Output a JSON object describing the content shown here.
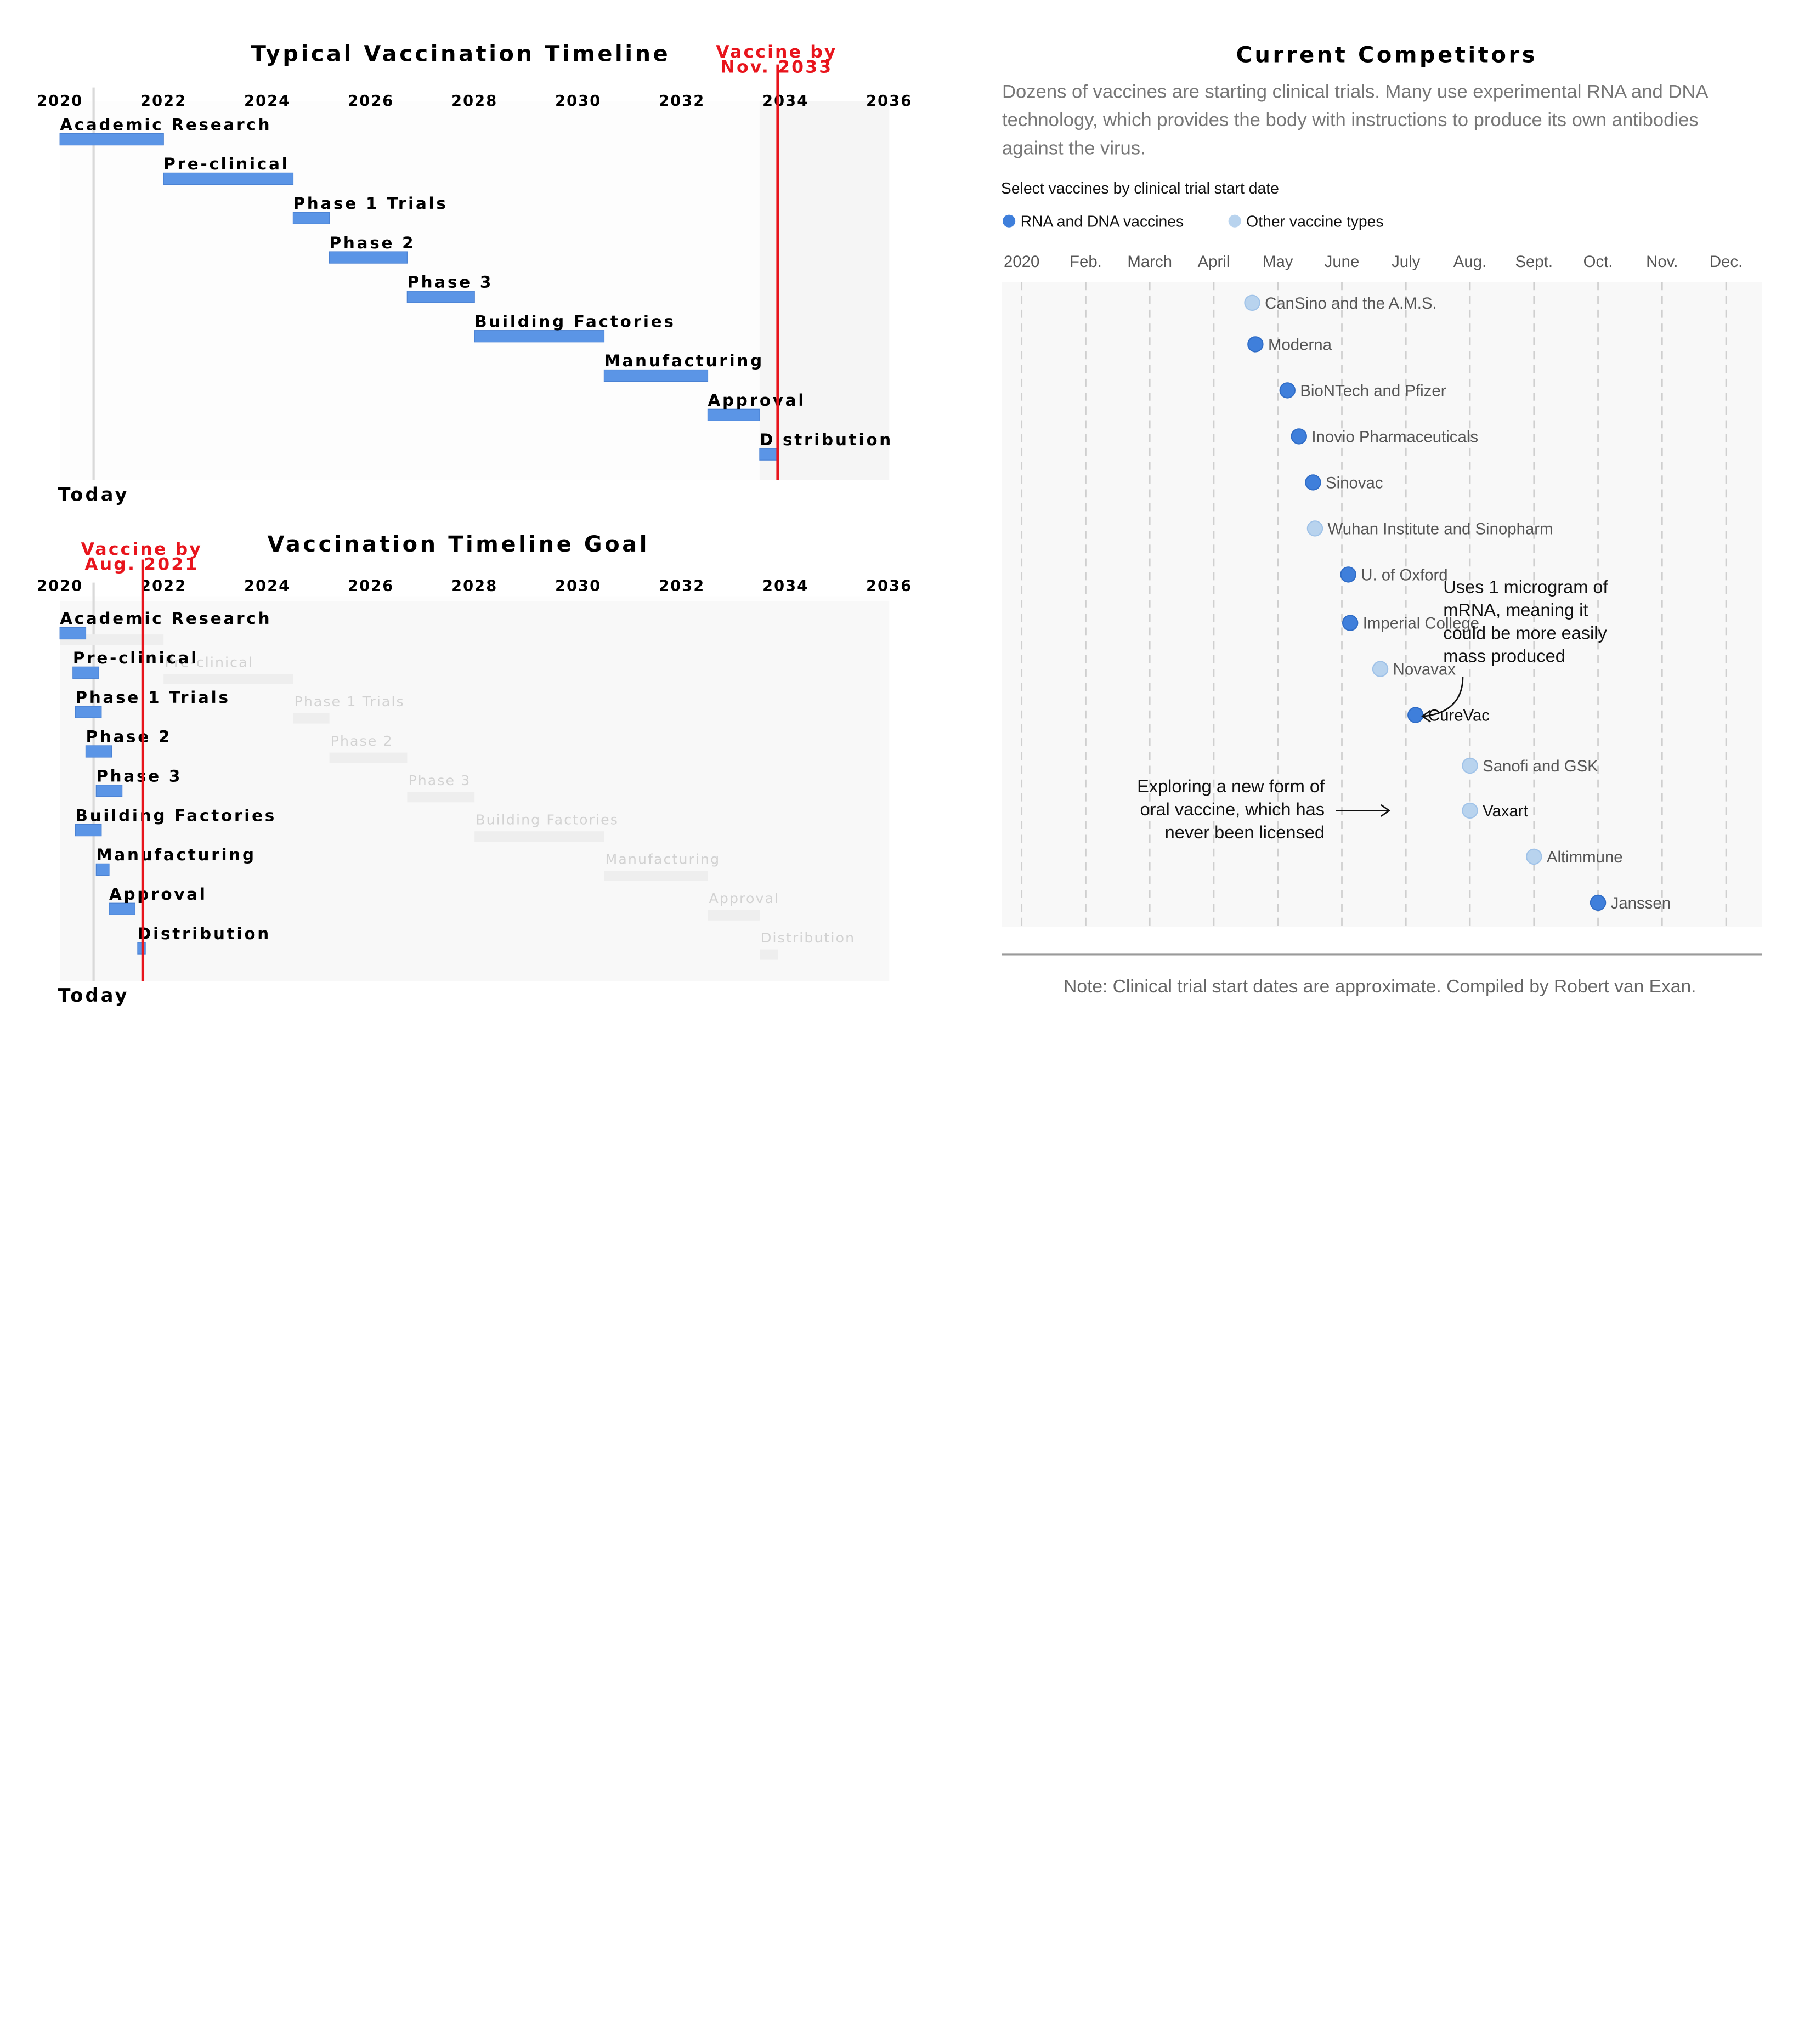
{
  "chart_data": [
    {
      "type": "gantt",
      "title": "Typical Vaccination Timeline",
      "x_ticks": [
        "2020",
        "2022",
        "2024",
        "2026",
        "2028",
        "2030",
        "2032",
        "2034",
        "2036"
      ],
      "xlim": [
        2020,
        2036
      ],
      "tasks": [
        {
          "label": "Academic Research",
          "start": 2020.0,
          "end": 2022.0
        },
        {
          "label": "Pre-clinical",
          "start": 2022.0,
          "end": 2024.5
        },
        {
          "label": "Phase 1 Trials",
          "start": 2024.5,
          "end": 2025.2
        },
        {
          "label": "Phase 2",
          "start": 2025.2,
          "end": 2026.7
        },
        {
          "label": "Phase 3",
          "start": 2026.7,
          "end": 2028.0
        },
        {
          "label": "Building Factories",
          "start": 2028.0,
          "end": 2030.5
        },
        {
          "label": "Manufacturing",
          "start": 2030.5,
          "end": 2032.5
        },
        {
          "label": "Approval",
          "start": 2032.5,
          "end": 2033.5
        },
        {
          "label": "Distribution",
          "start": 2033.5,
          "end": 2033.85
        }
      ],
      "today_x": 2020.65,
      "today_label": "Today",
      "vline": {
        "x": 2033.85,
        "label_lines": [
          "Vaccine by",
          "Nov. 2033"
        ],
        "color": "#e8141c"
      },
      "bar_color": "#5b95e6",
      "shade_from_x": 2033.5
    },
    {
      "type": "gantt",
      "title": "Vaccination Timeline Goal",
      "x_ticks": [
        "2020",
        "2022",
        "2024",
        "2026",
        "2028",
        "2030",
        "2032",
        "2034",
        "2036"
      ],
      "xlim": [
        2020,
        2036
      ],
      "tasks": [
        {
          "label": "Academic Research",
          "start": 2020.0,
          "end": 2020.5
        },
        {
          "label": "Pre-clinical",
          "start": 2020.25,
          "end": 2020.75
        },
        {
          "label": "Phase 1 Trials",
          "start": 2020.3,
          "end": 2020.8
        },
        {
          "label": "Phase 2",
          "start": 2020.5,
          "end": 2021.0
        },
        {
          "label": "Phase 3",
          "start": 2020.7,
          "end": 2021.2
        },
        {
          "label": "Building Factories",
          "start": 2020.3,
          "end": 2020.8
        },
        {
          "label": "Manufacturing",
          "start": 2020.7,
          "end": 2020.95
        },
        {
          "label": "Approval",
          "start": 2020.95,
          "end": 2021.45
        },
        {
          "label": "Distribution",
          "start": 2021.5,
          "end": 2021.65
        }
      ],
      "ghost_tasks": [
        {
          "label": "Academic Research",
          "start": 2020.0,
          "end": 2022.0
        },
        {
          "label": "Pre-clinical",
          "start": 2022.0,
          "end": 2024.5
        },
        {
          "label": "Phase 1 Trials",
          "start": 2024.5,
          "end": 2025.2
        },
        {
          "label": "Phase 2",
          "start": 2025.2,
          "end": 2026.7
        },
        {
          "label": "Phase 3",
          "start": 2026.7,
          "end": 2028.0
        },
        {
          "label": "Building Factories",
          "start": 2028.0,
          "end": 2030.5
        },
        {
          "label": "Manufacturing",
          "start": 2030.5,
          "end": 2032.5
        },
        {
          "label": "Approval",
          "start": 2032.5,
          "end": 2033.5
        },
        {
          "label": "Distribution",
          "start": 2033.5,
          "end": 2033.85
        }
      ],
      "today_x": 2020.65,
      "today_label": "Today",
      "vline": {
        "x": 2021.6,
        "label_lines": [
          "Vaccine by",
          "Aug. 2021"
        ],
        "color": "#e8141c"
      },
      "bar_color": "#5b95e6"
    },
    {
      "type": "scatter",
      "title": "Current Competitors",
      "subtitle_lines": [
        "Dozens of vaccines are starting clinical trials. Many use experimental RNA and DNA",
        "technology, which provides the body with instructions to produce its own antibodies",
        "against the virus."
      ],
      "select_label": "Select vaccines by clinical trial start date",
      "legend": [
        {
          "name": "RNA and DNA vaccines",
          "color": "#3f7fdb"
        },
        {
          "name": "Other vaccine types",
          "color": "#b8d3ee"
        }
      ],
      "x_ticks": [
        "2020",
        "Feb.",
        "March",
        "April",
        "May",
        "June",
        "July",
        "Aug.",
        "Sept.",
        "Oct.",
        "Nov.",
        "Dec."
      ],
      "points": [
        {
          "label": "CanSino and the A.M.S.",
          "x": 3.6,
          "group": 1
        },
        {
          "label": "Moderna",
          "x": 3.65,
          "group": 0
        },
        {
          "label": "BioNTech and Pfizer",
          "x": 4.15,
          "group": 0
        },
        {
          "label": "Inovio Pharmaceuticals",
          "x": 4.33,
          "group": 0
        },
        {
          "label": "Sinovac",
          "x": 4.55,
          "group": 0
        },
        {
          "label": "Wuhan Institute and Sinopharm",
          "x": 4.58,
          "group": 1
        },
        {
          "label": "U. of Oxford",
          "x": 5.1,
          "group": 0
        },
        {
          "label": "Imperial College",
          "x": 5.13,
          "group": 0
        },
        {
          "label": "Novavax",
          "x": 5.6,
          "group": 1
        },
        {
          "label": "CureVac",
          "x": 6.15,
          "group": 0,
          "highlight": true
        },
        {
          "label": "Sanofi and GSK",
          "x": 7.0,
          "group": 1
        },
        {
          "label": "Vaxart",
          "x": 7.0,
          "group": 1,
          "highlight": true
        },
        {
          "label": "Altimmune",
          "x": 8.0,
          "group": 1
        },
        {
          "label": "Janssen",
          "x": 9.0,
          "group": 0
        }
      ],
      "annotations": [
        {
          "target": "CureVac",
          "lines": [
            "Uses 1 microgram of",
            "mRNA, meaning it",
            "could be more easily",
            "mass produced"
          ]
        },
        {
          "target": "Vaxart",
          "lines": [
            "Exploring a new form of",
            "oral vaccine, which has",
            "never been licensed"
          ]
        }
      ],
      "note": "Note: Clinical trial start dates are approximate. Compiled by Robert van Exan."
    }
  ]
}
